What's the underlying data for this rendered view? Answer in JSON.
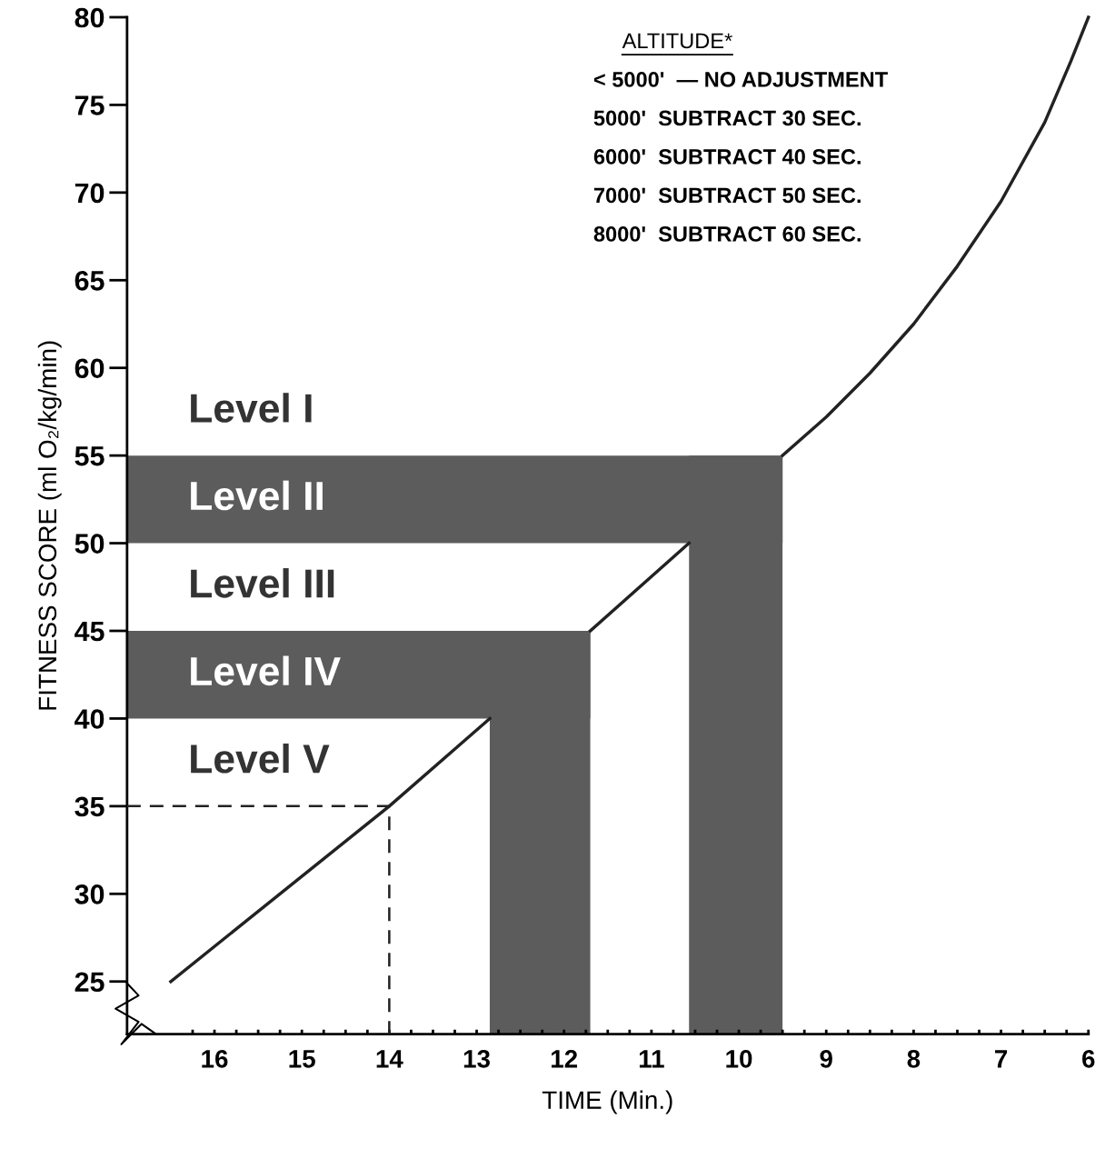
{
  "chart_data": {
    "type": "line",
    "xlabel": "TIME (Min.)",
    "ylabel": "FITNESS SCORE (ml O₂/kg/min)",
    "xlim": [
      17,
      6
    ],
    "ylim": [
      22,
      80
    ],
    "xticks": [
      {
        "value": 16.25,
        "label": null
      },
      16,
      {
        "value": 15.75,
        "label": null
      },
      {
        "value": 15.5,
        "label": null
      },
      {
        "value": 15.25,
        "label": null
      },
      15,
      {
        "value": 14.75,
        "label": null
      },
      {
        "value": 14.5,
        "label": null
      },
      {
        "value": 14.25,
        "label": null
      },
      14,
      {
        "value": 13.75,
        "label": null
      },
      {
        "value": 13.5,
        "label": null
      },
      {
        "value": 13.25,
        "label": null
      },
      13,
      {
        "value": 12.75,
        "label": null
      },
      {
        "value": 12.5,
        "label": null
      },
      {
        "value": 12.25,
        "label": null
      },
      12,
      {
        "value": 11.75,
        "label": null
      },
      {
        "value": 11.5,
        "label": null
      },
      {
        "value": 11.25,
        "label": null
      },
      11,
      {
        "value": 10.75,
        "label": null
      },
      {
        "value": 10.5,
        "label": null
      },
      {
        "value": 10.25,
        "label": null
      },
      10,
      {
        "value": 9.75,
        "label": null
      },
      {
        "value": 9.5,
        "label": null
      },
      {
        "value": 9.25,
        "label": null
      },
      9,
      {
        "value": 8.75,
        "label": null
      },
      {
        "value": 8.5,
        "label": null
      },
      {
        "value": 8.25,
        "label": null
      },
      8,
      {
        "value": 7.75,
        "label": null
      },
      {
        "value": 7.5,
        "label": null
      },
      {
        "value": 7.25,
        "label": null
      },
      7,
      {
        "value": 6.75,
        "label": null
      },
      {
        "value": 6.5,
        "label": null
      },
      {
        "value": 6.25,
        "label": null
      },
      6
    ],
    "yticks": [
      25,
      30,
      35,
      40,
      45,
      50,
      55,
      60,
      65,
      70,
      75,
      80
    ],
    "grid": false,
    "marker": "none",
    "series": [
      {
        "color": "#222222",
        "line_style": "solid",
        "x": [
          16.5,
          14,
          12.85,
          null,
          11.7,
          10.57,
          null,
          9.5,
          9,
          8.5,
          8,
          7.5,
          7,
          6.5,
          6.2,
          6
        ],
        "values": [
          25,
          35,
          40,
          null,
          45,
          50,
          null,
          55,
          57.2,
          59.7,
          62.5,
          65.8,
          69.5,
          74,
          77.5,
          80
        ]
      },
      {
        "color": "#222222",
        "line_style": "dashed",
        "x": [
          17,
          14,
          14
        ],
        "values": [
          35,
          35,
          22
        ]
      }
    ],
    "bands": [
      {
        "axis": "y",
        "from": 50,
        "to": 55,
        "label": "Level II",
        "color": "#5c5c5c"
      },
      {
        "axis": "x",
        "from": 10.57,
        "to": 9.5,
        "color": "#5c5c5c"
      },
      {
        "axis": "y",
        "from": 40,
        "to": 45,
        "label": "Level IV",
        "color": "#5c5c5c"
      },
      {
        "axis": "x",
        "from": 12.85,
        "to": 11.7,
        "color": "#5c5c5c"
      }
    ],
    "annotations": [
      "Level I",
      "Level III",
      "Level V",
      "ALTITUDE*",
      "< 5000'  — NO ADJUSTMENT",
      "5000'  SUBTRACT 30 SEC.",
      "6000'  SUBTRACT 40 SEC.",
      "7000'  SUBTRACT 50 SEC.",
      "8000'  SUBTRACT 60 SEC."
    ]
  }
}
